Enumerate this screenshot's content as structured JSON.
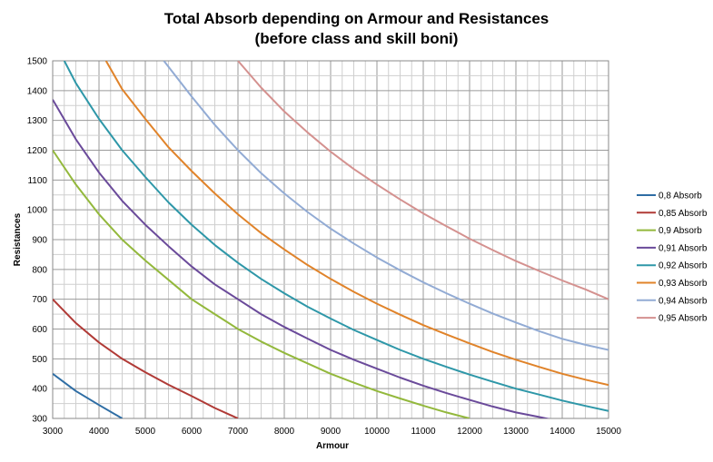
{
  "chart_data": {
    "type": "line",
    "title": "Total Absorb depending on Armour and Resistances",
    "subtitle": "(before class and skill boni)",
    "xlabel": "Armour",
    "ylabel": "Resistances",
    "xlim": [
      3000,
      15000
    ],
    "ylim": [
      300,
      1500
    ],
    "x_ticks": [
      "3000",
      "4000",
      "5000",
      "6000",
      "7000",
      "8000",
      "9000",
      "10000",
      "11000",
      "12000",
      "13000",
      "14000",
      "15000"
    ],
    "y_ticks": [
      "300",
      "400",
      "500",
      "600",
      "700",
      "800",
      "900",
      "1000",
      "1100",
      "1200",
      "1300",
      "1400",
      "1500"
    ],
    "grid": true,
    "legend_position": "right",
    "series": [
      {
        "name": "0,8 Absorb",
        "color": "#2e6da4",
        "points": [
          [
            3000,
            450
          ],
          [
            3500,
            392
          ],
          [
            4000,
            345
          ],
          [
            4500,
            300
          ]
        ]
      },
      {
        "name": "0,85 Absorb",
        "color": "#b03a36",
        "points": [
          [
            3000,
            700
          ],
          [
            3500,
            620
          ],
          [
            4000,
            555
          ],
          [
            4500,
            500
          ],
          [
            5000,
            455
          ],
          [
            5500,
            413
          ],
          [
            6000,
            375
          ],
          [
            6500,
            335
          ],
          [
            7000,
            300
          ]
        ]
      },
      {
        "name": "0,9 Absorb",
        "color": "#93b83c",
        "points": [
          [
            3000,
            1200
          ],
          [
            3500,
            1085
          ],
          [
            4000,
            985
          ],
          [
            4500,
            900
          ],
          [
            5000,
            830
          ],
          [
            5500,
            765
          ],
          [
            6000,
            700
          ],
          [
            6500,
            650
          ],
          [
            7000,
            600
          ],
          [
            7500,
            558
          ],
          [
            8000,
            520
          ],
          [
            8500,
            485
          ],
          [
            9000,
            450
          ],
          [
            9500,
            420
          ],
          [
            10000,
            392
          ],
          [
            10500,
            367
          ],
          [
            11000,
            343
          ],
          [
            11500,
            320
          ],
          [
            12000,
            300
          ]
        ]
      },
      {
        "name": "0,91 Absorb",
        "color": "#6a4a9a",
        "points": [
          [
            3000,
            1370
          ],
          [
            3500,
            1237
          ],
          [
            4000,
            1125
          ],
          [
            4500,
            1030
          ],
          [
            5000,
            950
          ],
          [
            5500,
            878
          ],
          [
            6000,
            810
          ],
          [
            6500,
            750
          ],
          [
            7000,
            700
          ],
          [
            7500,
            650
          ],
          [
            8000,
            607
          ],
          [
            8500,
            568
          ],
          [
            9000,
            530
          ],
          [
            9500,
            497
          ],
          [
            10000,
            467
          ],
          [
            10500,
            437
          ],
          [
            11000,
            410
          ],
          [
            11500,
            385
          ],
          [
            12000,
            362
          ],
          [
            12500,
            340
          ],
          [
            13000,
            320
          ],
          [
            13500,
            305
          ],
          [
            13800,
            295
          ]
        ]
      },
      {
        "name": "0,92 Absorb",
        "color": "#2e97a8",
        "points": [
          [
            3250,
            1500
          ],
          [
            3500,
            1425
          ],
          [
            4000,
            1305
          ],
          [
            4500,
            1200
          ],
          [
            5000,
            1110
          ],
          [
            5500,
            1025
          ],
          [
            6000,
            950
          ],
          [
            6500,
            882
          ],
          [
            7000,
            822
          ],
          [
            7500,
            768
          ],
          [
            8000,
            720
          ],
          [
            8500,
            675
          ],
          [
            9000,
            635
          ],
          [
            9500,
            597
          ],
          [
            10000,
            563
          ],
          [
            10500,
            530
          ],
          [
            11000,
            500
          ],
          [
            11500,
            473
          ],
          [
            12000,
            447
          ],
          [
            12500,
            423
          ],
          [
            13000,
            400
          ],
          [
            13500,
            380
          ],
          [
            14000,
            360
          ],
          [
            14500,
            342
          ],
          [
            15000,
            325
          ]
        ]
      },
      {
        "name": "0,93 Absorb",
        "color": "#e0832a",
        "points": [
          [
            4150,
            1500
          ],
          [
            4500,
            1405
          ],
          [
            5000,
            1305
          ],
          [
            5500,
            1210
          ],
          [
            6000,
            1130
          ],
          [
            6500,
            1055
          ],
          [
            7000,
            985
          ],
          [
            7500,
            922
          ],
          [
            8000,
            867
          ],
          [
            8500,
            815
          ],
          [
            9000,
            768
          ],
          [
            9500,
            725
          ],
          [
            10000,
            685
          ],
          [
            10500,
            648
          ],
          [
            11000,
            613
          ],
          [
            11500,
            582
          ],
          [
            12000,
            552
          ],
          [
            12500,
            523
          ],
          [
            13000,
            497
          ],
          [
            13500,
            473
          ],
          [
            14000,
            450
          ],
          [
            14500,
            430
          ],
          [
            15000,
            412
          ]
        ]
      },
      {
        "name": "0,94 Absorb",
        "color": "#92abd4",
        "points": [
          [
            5400,
            1500
          ],
          [
            6000,
            1380
          ],
          [
            6500,
            1285
          ],
          [
            7000,
            1200
          ],
          [
            7500,
            1123
          ],
          [
            8000,
            1055
          ],
          [
            8500,
            993
          ],
          [
            9000,
            937
          ],
          [
            9500,
            887
          ],
          [
            10000,
            840
          ],
          [
            10500,
            797
          ],
          [
            11000,
            757
          ],
          [
            11500,
            720
          ],
          [
            12000,
            685
          ],
          [
            12500,
            652
          ],
          [
            13000,
            622
          ],
          [
            13500,
            593
          ],
          [
            14000,
            567
          ],
          [
            14500,
            547
          ],
          [
            15000,
            530
          ]
        ]
      },
      {
        "name": "0,95 Absorb",
        "color": "#d4918f",
        "points": [
          [
            7000,
            1500
          ],
          [
            7500,
            1410
          ],
          [
            8000,
            1330
          ],
          [
            8500,
            1260
          ],
          [
            9000,
            1195
          ],
          [
            9500,
            1137
          ],
          [
            10000,
            1085
          ],
          [
            10500,
            1035
          ],
          [
            11000,
            988
          ],
          [
            11500,
            945
          ],
          [
            12000,
            903
          ],
          [
            12500,
            865
          ],
          [
            13000,
            828
          ],
          [
            13500,
            795
          ],
          [
            14000,
            763
          ],
          [
            14500,
            733
          ],
          [
            15000,
            700
          ]
        ]
      }
    ]
  }
}
